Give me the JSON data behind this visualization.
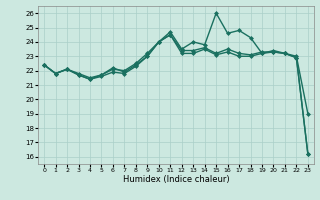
{
  "xlabel": "Humidex (Indice chaleur)",
  "xlim": [
    -0.5,
    23.5
  ],
  "ylim": [
    15.5,
    26.5
  ],
  "xticks": [
    0,
    1,
    2,
    3,
    4,
    5,
    6,
    7,
    8,
    9,
    10,
    11,
    12,
    13,
    14,
    15,
    16,
    17,
    18,
    19,
    20,
    21,
    22,
    23
  ],
  "yticks": [
    16,
    17,
    18,
    19,
    20,
    21,
    22,
    23,
    24,
    25,
    26
  ],
  "bg_color": "#cce8e0",
  "grid_color": "#aacfc8",
  "line_color": "#1a7060",
  "line1_x": [
    0,
    1,
    2,
    3,
    4,
    5,
    6,
    7,
    8,
    9,
    10,
    11,
    12,
    13,
    14,
    15,
    16,
    17,
    18,
    19,
    20,
    21,
    22,
    23
  ],
  "line1_y": [
    22.4,
    21.8,
    22.1,
    21.7,
    21.4,
    21.6,
    21.9,
    21.8,
    22.3,
    23.0,
    24.0,
    24.5,
    23.2,
    23.2,
    23.5,
    23.1,
    23.3,
    23.0,
    23.0,
    23.2,
    23.3,
    23.2,
    22.9,
    16.2
  ],
  "line2_x": [
    0,
    1,
    2,
    3,
    4,
    5,
    6,
    7,
    8,
    9,
    10,
    11,
    12,
    13,
    14,
    15,
    16,
    17,
    18,
    19,
    20,
    21,
    22,
    23
  ],
  "line2_y": [
    22.4,
    21.8,
    22.1,
    21.8,
    21.5,
    21.7,
    22.1,
    22.0,
    22.5,
    23.2,
    24.0,
    24.5,
    23.4,
    23.4,
    23.6,
    23.2,
    23.5,
    23.2,
    23.1,
    23.3,
    23.3,
    23.2,
    23.0,
    19.0
  ],
  "line3_x": [
    0,
    1,
    2,
    3,
    4,
    5,
    6,
    7,
    8,
    9,
    10,
    11,
    12,
    13,
    14,
    15,
    16,
    17,
    18,
    19,
    20,
    21,
    22,
    23
  ],
  "line3_y": [
    22.4,
    21.8,
    22.1,
    21.7,
    21.4,
    21.7,
    22.2,
    21.9,
    22.4,
    23.0,
    24.0,
    24.7,
    23.5,
    24.0,
    23.8,
    26.0,
    24.6,
    24.8,
    24.3,
    23.2,
    23.4,
    23.2,
    22.9,
    16.2
  ],
  "marker": "D",
  "markersize": 2.5,
  "linewidth": 1.0
}
